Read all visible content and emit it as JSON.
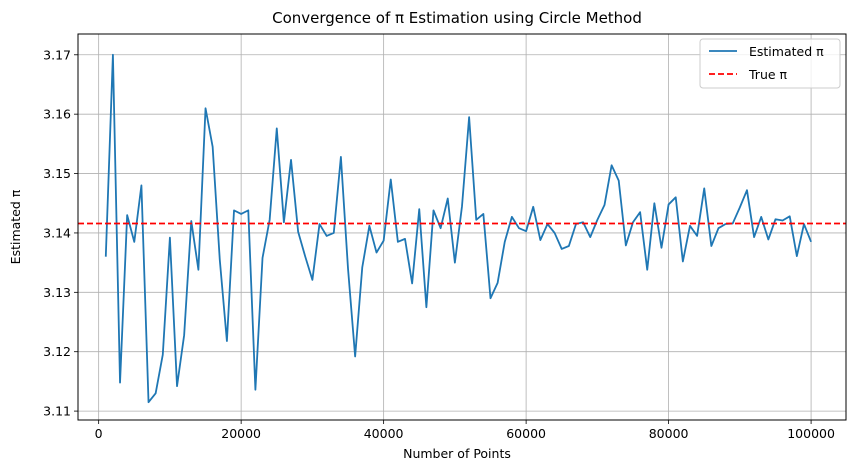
{
  "chart_data": {
    "type": "line",
    "title": "Convergence of π Estimation using Circle Method",
    "xlabel": "Number of Points",
    "ylabel": "Estimated π",
    "xlim": [
      -2900,
      104900
    ],
    "ylim": [
      3.1085,
      3.1735
    ],
    "xticks": [
      0,
      20000,
      40000,
      60000,
      80000,
      100000
    ],
    "yticks": [
      3.11,
      3.12,
      3.13,
      3.14,
      3.15,
      3.16,
      3.17
    ],
    "ytick_labels": [
      "3.11",
      "3.12",
      "3.13",
      "3.14",
      "3.15",
      "3.16",
      "3.17"
    ],
    "grid": true,
    "legend_position": "top-right",
    "x": [
      1000,
      2000,
      3000,
      4000,
      5000,
      6000,
      7000,
      8000,
      9000,
      10000,
      11000,
      12000,
      13000,
      14000,
      15000,
      16000,
      17000,
      18000,
      19000,
      20000,
      21000,
      22000,
      23000,
      24000,
      25000,
      26000,
      27000,
      28000,
      29000,
      30000,
      31000,
      32000,
      33000,
      34000,
      35000,
      36000,
      37000,
      38000,
      39000,
      40000,
      41000,
      42000,
      43000,
      44000,
      45000,
      46000,
      47000,
      48000,
      49000,
      50000,
      51000,
      52000,
      53000,
      54000,
      55000,
      56000,
      57000,
      58000,
      59000,
      60000,
      61000,
      62000,
      63000,
      64000,
      65000,
      66000,
      67000,
      68000,
      69000,
      70000,
      71000,
      72000,
      73000,
      74000,
      75000,
      76000,
      77000,
      78000,
      79000,
      80000,
      81000,
      82000,
      83000,
      84000,
      85000,
      86000,
      87000,
      88000,
      89000,
      90000,
      91000,
      92000,
      93000,
      94000,
      95000,
      96000,
      97000,
      98000,
      99000,
      100000
    ],
    "series": [
      {
        "name": "Estimated π",
        "color": "#1f77b4",
        "style": "solid",
        "values": [
          3.136,
          3.17,
          3.1148,
          3.143,
          3.1385,
          3.148,
          3.1115,
          3.113,
          3.1195,
          3.1392,
          3.1142,
          3.1228,
          3.142,
          3.1338,
          3.161,
          3.1545,
          3.1355,
          3.1218,
          3.1438,
          3.1432,
          3.1438,
          3.1136,
          3.1358,
          3.1422,
          3.1576,
          3.1418,
          3.1523,
          3.1402,
          3.136,
          3.1321,
          3.1415,
          3.1395,
          3.14,
          3.1528,
          3.134,
          3.1192,
          3.1342,
          3.1412,
          3.1367,
          3.1387,
          3.149,
          3.1385,
          3.139,
          3.1315,
          3.144,
          3.1275,
          3.1438,
          3.1408,
          3.1458,
          3.135,
          3.1445,
          3.1595,
          3.1422,
          3.1432,
          3.129,
          3.1316,
          3.1385,
          3.1427,
          3.1408,
          3.1403,
          3.1444,
          3.1388,
          3.1415,
          3.14,
          3.1373,
          3.1378,
          3.1415,
          3.1418,
          3.1393,
          3.1422,
          3.1447,
          3.1514,
          3.1488,
          3.1379,
          3.1418,
          3.1435,
          3.1338,
          3.145,
          3.1375,
          3.1448,
          3.146,
          3.1352,
          3.1412,
          3.1395,
          3.1475,
          3.1378,
          3.1408,
          3.1415,
          3.1416,
          3.1443,
          3.1472,
          3.1393,
          3.1427,
          3.1389,
          3.1423,
          3.1421,
          3.1428,
          3.1361,
          3.1415,
          3.1385
        ]
      }
    ],
    "reference_lines": [
      {
        "name": "True π",
        "value": 3.14159,
        "color": "#ff0000",
        "style": "dashed"
      }
    ],
    "colors": {
      "grid": "#b0b0b0",
      "axis": "#000000"
    }
  }
}
